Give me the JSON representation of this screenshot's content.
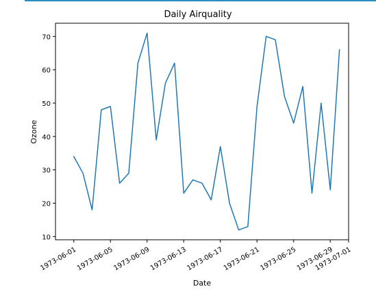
{
  "chart_data": {
    "type": "line",
    "title": "Daily Airquality",
    "xlabel": "Date",
    "ylabel": "Ozone",
    "x": [
      "1973-06-01",
      "1973-06-02",
      "1973-06-03",
      "1973-06-04",
      "1973-06-05",
      "1973-06-06",
      "1973-06-07",
      "1973-06-08",
      "1973-06-09",
      "1973-06-10",
      "1973-06-11",
      "1973-06-12",
      "1973-06-13",
      "1973-06-14",
      "1973-06-15",
      "1973-06-16",
      "1973-06-17",
      "1973-06-18",
      "1973-06-19",
      "1973-06-20",
      "1973-06-21",
      "1973-06-22",
      "1973-06-23",
      "1973-06-24",
      "1973-06-25",
      "1973-06-26",
      "1973-06-27",
      "1973-06-28",
      "1973-06-29",
      "1973-06-30"
    ],
    "series": [
      {
        "values": [
          34,
          29,
          18,
          48,
          49,
          26,
          29,
          62,
          71,
          39,
          56,
          62,
          23,
          27,
          26,
          21,
          37,
          20,
          12,
          13,
          49,
          70,
          69,
          52,
          44,
          55,
          23,
          50,
          24,
          66
        ],
        "color": "#1f77b4"
      }
    ],
    "xticks": [
      "1973-06-01",
      "1973-06-05",
      "1973-06-09",
      "1973-06-13",
      "1973-06-17",
      "1973-06-21",
      "1973-06-25",
      "1973-06-29",
      "1973-07-01"
    ],
    "yticks": [
      10,
      20,
      30,
      40,
      50,
      60,
      70
    ],
    "xlim": [
      "1973-05-30",
      "1973-07-01"
    ],
    "ylim": [
      9.05,
      73.95
    ],
    "grid": false
  }
}
